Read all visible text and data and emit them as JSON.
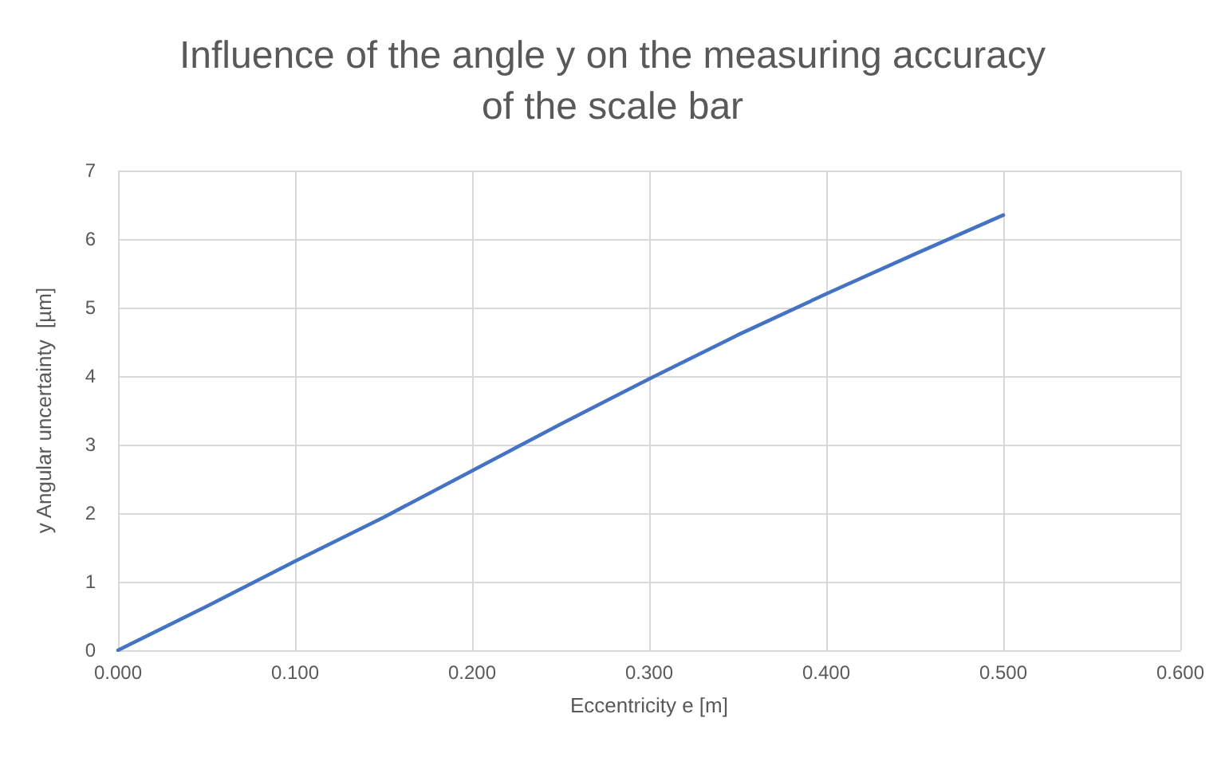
{
  "chart_data": {
    "type": "line",
    "title": "Influence of the angle y on the measuring accuracy\nof the scale bar",
    "xlabel": "Eccentricity e [m]",
    "ylabel": "y Angular uncertainty  [µm]",
    "x": [
      0,
      0.05,
      0.1,
      0.15,
      0.2,
      0.25,
      0.3,
      0.35,
      0.4,
      0.45,
      0.5
    ],
    "series": [
      {
        "color": "#4472c4",
        "values": [
          0,
          0.64,
          1.3,
          1.94,
          2.62,
          3.3,
          3.96,
          4.6,
          5.2,
          5.78,
          6.35
        ]
      }
    ],
    "xlim": [
      0,
      0.6
    ],
    "xticks": [
      {
        "value": 0,
        "label": "0.000"
      },
      {
        "value": 0.1,
        "label": "0.100"
      },
      {
        "value": 0.2,
        "label": "0.200"
      },
      {
        "value": 0.3,
        "label": "0.300"
      },
      {
        "value": 0.4,
        "label": "0.400"
      },
      {
        "value": 0.5,
        "label": "0.500"
      },
      {
        "value": 0.6,
        "label": "0.600"
      }
    ],
    "ylim": [
      0,
      7
    ],
    "yticks": [
      0,
      1,
      2,
      3,
      4,
      5,
      6,
      7
    ],
    "grid": true,
    "marker": "none",
    "line_style": "solid"
  }
}
